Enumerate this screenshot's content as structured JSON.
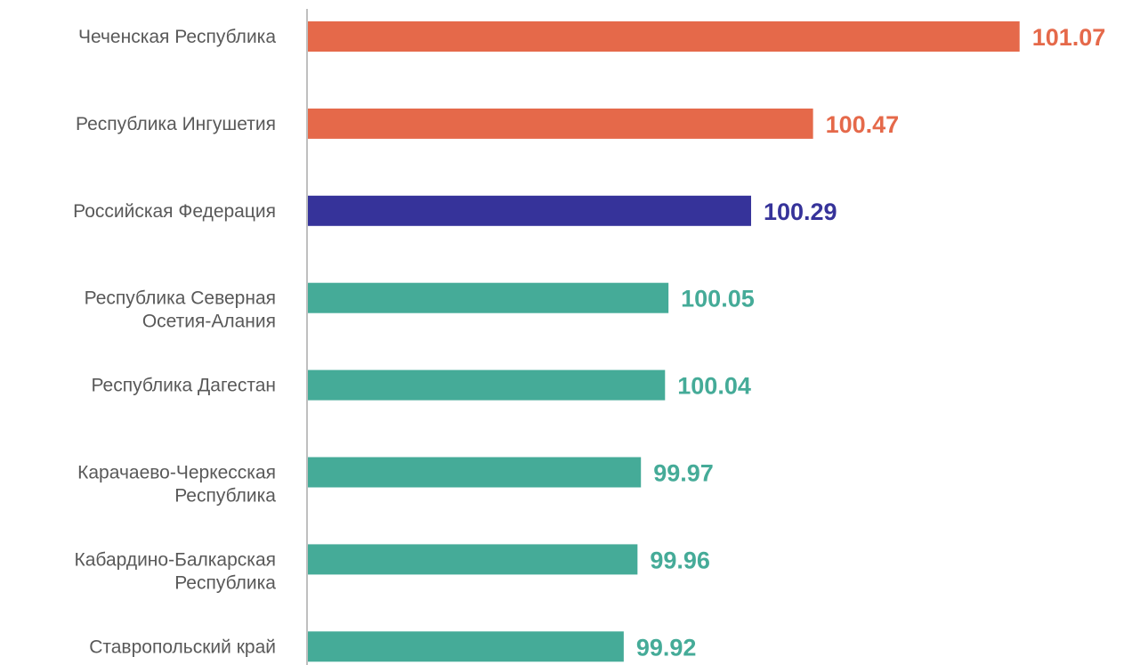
{
  "chart_data": {
    "type": "barh",
    "categories": [
      "Чеченская Республика",
      "Республика Ингушетия",
      "Российская Федерация",
      "Республика Северная\nОсетия-Алания",
      "Республика Дагестан",
      "Карачаево-Черкесская\nРеспублика",
      "Кабардино-Балкарская\nРеспублика",
      "Ставропольский край"
    ],
    "values": [
      101.07,
      100.47,
      100.29,
      100.05,
      100.04,
      99.97,
      99.96,
      99.92
    ],
    "colors": [
      "#e5694a",
      "#e5694a",
      "#36339a",
      "#45ab98",
      "#45ab98",
      "#45ab98",
      "#45ab98",
      "#45ab98"
    ],
    "xlim": [
      99,
      101.35
    ]
  }
}
